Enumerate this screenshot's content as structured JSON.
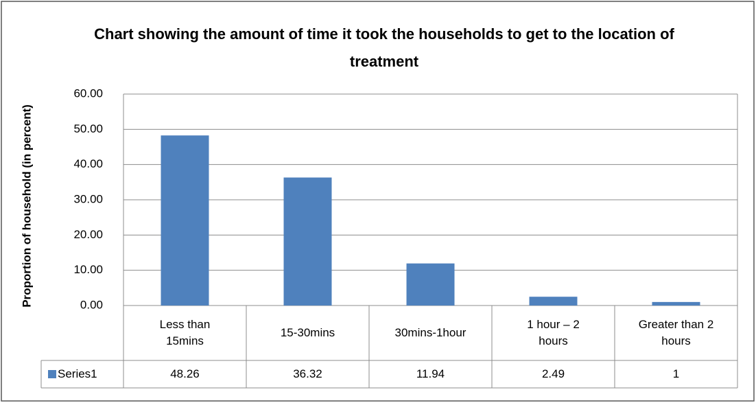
{
  "chart_data": {
    "type": "bar",
    "title": "Chart showing the amount of time it took the households to get to the location of treatment",
    "y_label": "Proportion of household (in percent)",
    "categories": [
      "Less than 15mins",
      "15-30mins",
      "30mins-1hour",
      "1 hour – 2 hours",
      "Greater than 2 hours"
    ],
    "series": [
      {
        "name": "Series1",
        "color": "#4f81bd",
        "values": [
          48.26,
          36.32,
          11.94,
          2.49,
          1
        ]
      }
    ],
    "ylim": [
      0,
      60
    ],
    "yticks": [
      {
        "value": 0,
        "label": "0.00"
      },
      {
        "value": 10,
        "label": "10.00"
      },
      {
        "value": 20,
        "label": "20.00"
      },
      {
        "value": 30,
        "label": "30.00"
      },
      {
        "value": 40,
        "label": "40.00"
      },
      {
        "value": 50,
        "label": "50.00"
      },
      {
        "value": 60,
        "label": "60.00"
      }
    ],
    "grid": true
  }
}
